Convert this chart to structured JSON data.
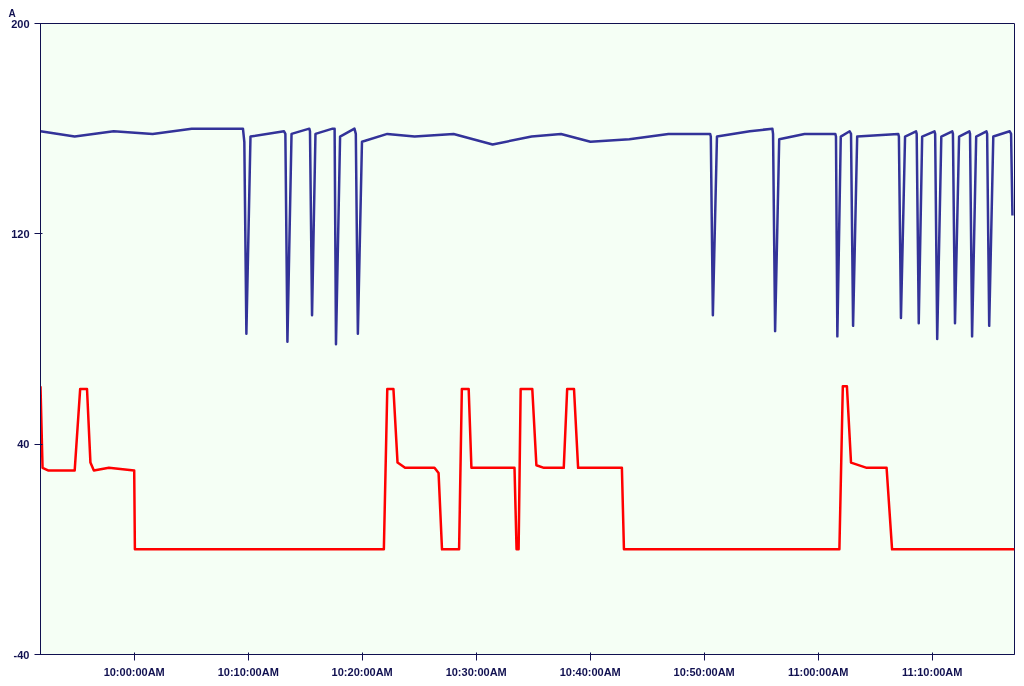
{
  "chart_data": {
    "type": "line",
    "ylabel": "A",
    "xlim": [
      9.863,
      11.287
    ],
    "ylim": [
      -40,
      200
    ],
    "yticks": [
      -40,
      40,
      120,
      200
    ],
    "xticks": [
      {
        "value": 10,
        "label": "10:00:00AM"
      },
      {
        "value": 10.1667,
        "label": "10:10:00AM"
      },
      {
        "value": 10.3333,
        "label": "10:20:00AM"
      },
      {
        "value": 10.5,
        "label": "10:30:00AM"
      },
      {
        "value": 10.6667,
        "label": "10:40:00AM"
      },
      {
        "value": 10.8333,
        "label": "10:50:00AM"
      },
      {
        "value": 11,
        "label": "11:00:00AM"
      },
      {
        "value": 11.1667,
        "label": "11:10:00AM"
      }
    ],
    "line_style": "solid",
    "marker": "none",
    "series": [
      {
        "color": "#333399",
        "x": [
          9.863,
          9.913,
          9.97,
          10.027,
          10.084,
          10.159,
          10.161,
          10.164,
          10.17,
          10.219,
          10.221,
          10.224,
          10.23,
          10.256,
          10.257,
          10.26,
          10.265,
          10.29,
          10.293,
          10.295,
          10.301,
          10.322,
          10.324,
          10.327,
          10.333,
          10.37,
          10.41,
          10.467,
          10.524,
          10.581,
          10.624,
          10.667,
          10.724,
          10.781,
          10.842,
          10.843,
          10.846,
          10.852,
          10.9,
          10.933,
          10.934,
          10.937,
          10.943,
          10.98,
          11.025,
          11.026,
          11.028,
          11.033,
          11.046,
          11.048,
          11.051,
          11.057,
          11.117,
          11.118,
          11.121,
          11.127,
          11.143,
          11.144,
          11.147,
          11.152,
          11.17,
          11.171,
          11.174,
          11.18,
          11.196,
          11.197,
          11.2,
          11.206,
          11.221,
          11.222,
          11.225,
          11.231,
          11.246,
          11.247,
          11.25,
          11.256,
          11.28,
          11.282,
          11.284
        ],
        "values": [
          159,
          157,
          159,
          158,
          160,
          160,
          155,
          82,
          157,
          159,
          158,
          79,
          158,
          160,
          159,
          89,
          158,
          160,
          160,
          78,
          157,
          160,
          158,
          82,
          155,
          158,
          157,
          158,
          154,
          157,
          158,
          155,
          156,
          158,
          158,
          157,
          89,
          157,
          159,
          160,
          158,
          83,
          156,
          158,
          158,
          157,
          81,
          157,
          159,
          158,
          85,
          157,
          158,
          157,
          88,
          157,
          159,
          158,
          86,
          157,
          159,
          158,
          80,
          157,
          159,
          158,
          86,
          157,
          159,
          158,
          81,
          157,
          159,
          158,
          85,
          157,
          159,
          158,
          127
        ]
      },
      {
        "color": "#ff0000",
        "x": [
          9.863,
          9.866,
          9.874,
          9.913,
          9.921,
          9.931,
          9.936,
          9.941,
          9.963,
          10.0,
          10.001,
          10.365,
          10.37,
          10.379,
          10.385,
          10.396,
          10.439,
          10.445,
          10.45,
          10.475,
          10.479,
          10.489,
          10.493,
          10.556,
          10.559,
          10.562,
          10.565,
          10.582,
          10.588,
          10.599,
          10.628,
          10.633,
          10.643,
          10.649,
          10.713,
          10.716,
          11.031,
          11.036,
          11.042,
          11.048,
          11.071,
          11.1,
          11.108,
          11.287
        ],
        "values": [
          62,
          31,
          30,
          30,
          61,
          61,
          33,
          30,
          31,
          30,
          0,
          0,
          61,
          61,
          33,
          31,
          31,
          29,
          0,
          0,
          61,
          61,
          31,
          31,
          0,
          0,
          61,
          61,
          32,
          31,
          31,
          61,
          61,
          31,
          31,
          0,
          0,
          62,
          62,
          33,
          31,
          31,
          0,
          0
        ]
      }
    ]
  }
}
